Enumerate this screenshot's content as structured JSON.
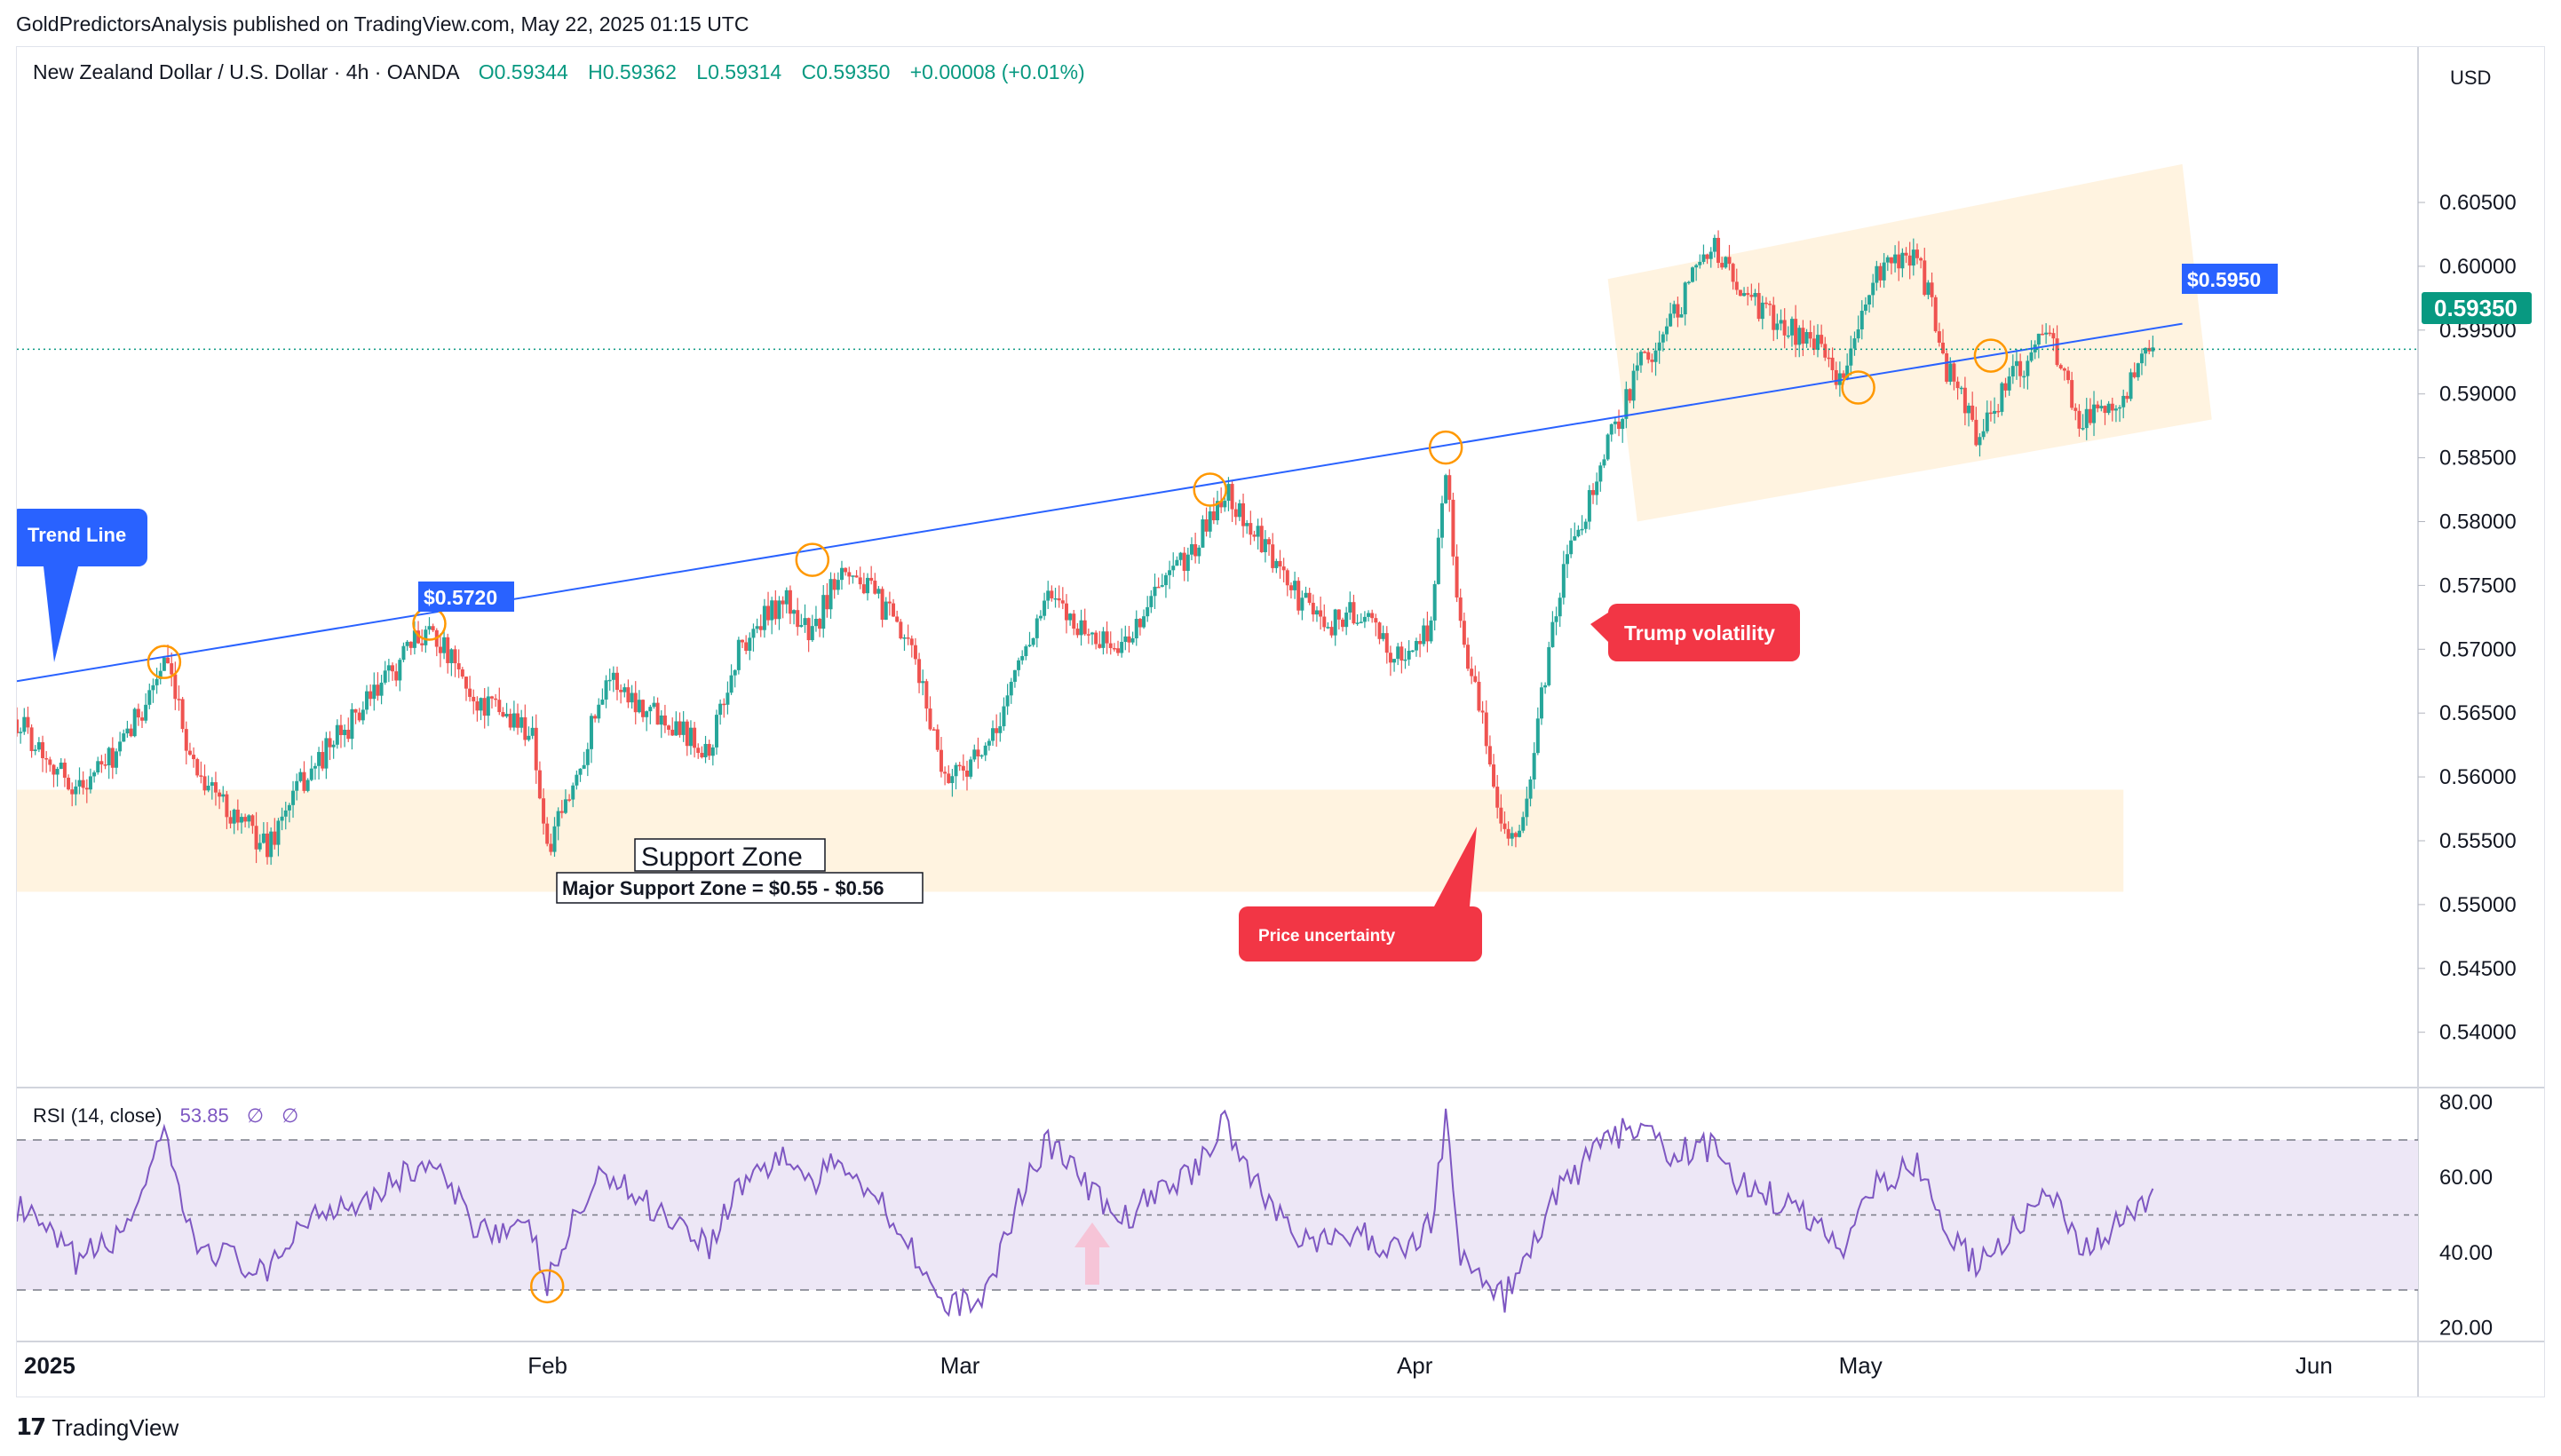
{
  "publisher_line": "GoldPredictorsAnalysis published on TradingView.com, May 22, 2025 01:15 UTC",
  "brand": {
    "mark": "17",
    "name": "TradingView"
  },
  "header": {
    "symbol": "New Zealand Dollar / U.S. Dollar · 4h · OANDA",
    "open": "O0.59344",
    "high": "H0.59362",
    "low": "L0.59314",
    "close": "C0.59350",
    "change": "+0.00008 (+0.01%)"
  },
  "currency_label": "USD",
  "current_price_tag": "0.59350",
  "colors": {
    "up": "#26a69a",
    "down": "#ef5350",
    "trend": "#2962ff",
    "zone": "#fff3e0",
    "rsi": "#7e57c2",
    "rsi_band": "#ede7f6",
    "callout_red": "#f23645",
    "price_tag": "#089981",
    "circle": "#ff9800"
  },
  "annotations": {
    "trend_line_label": "Trend Line",
    "price_label_1": "$0.5720",
    "price_label_2": "$0.5950",
    "support_zone_title": "Support Zone",
    "support_zone_desc": "Major Support Zone = $0.55 - $0.56",
    "trump_volatility": "Trump volatility",
    "price_uncertainty": "Price uncertainty"
  },
  "rsi_header": {
    "label": "RSI (14, close)",
    "value": "53.85",
    "extra1": "∅",
    "extra2": "∅"
  },
  "chart_data": [
    {
      "type": "line",
      "title": "New Zealand Dollar / U.S. Dollar · 4h · OANDA",
      "x_ticks": [
        "2025",
        "Feb",
        "Mar",
        "Apr",
        "May",
        "Jun"
      ],
      "y_ticks": [
        "0.60500",
        "0.60000",
        "0.59500",
        "0.59000",
        "0.58500",
        "0.58000",
        "0.57500",
        "0.57000",
        "0.56500",
        "0.56000",
        "0.55500",
        "0.55000",
        "0.54500",
        "0.54000"
      ],
      "ylim": [
        0.5365,
        0.613
      ],
      "xlim": [
        "2024-12-27",
        "2025-06-08"
      ],
      "series": [
        {
          "x": [
            "2024-12-27",
            "2024-12-31",
            "2025-01-03",
            "2025-01-06",
            "2025-01-08",
            "2025-01-10",
            "2025-01-13",
            "2025-01-15",
            "2025-01-17",
            "2025-01-20",
            "2025-01-22",
            "2025-01-24",
            "2025-01-27",
            "2025-01-29",
            "2025-01-31",
            "2025-02-01",
            "2025-02-03",
            "2025-02-05",
            "2025-02-07",
            "2025-02-10",
            "2025-02-12",
            "2025-02-14",
            "2025-02-17",
            "2025-02-19",
            "2025-02-21",
            "2025-02-24",
            "2025-02-26",
            "2025-02-28",
            "2025-03-03",
            "2025-03-05",
            "2025-03-07",
            "2025-03-10",
            "2025-03-12",
            "2025-03-14",
            "2025-03-17",
            "2025-03-19",
            "2025-03-21",
            "2025-03-24",
            "2025-03-26",
            "2025-03-28",
            "2025-03-31",
            "2025-04-02",
            "2025-04-03",
            "2025-04-04",
            "2025-04-07",
            "2025-04-08",
            "2025-04-09",
            "2025-04-10",
            "2025-04-11",
            "2025-04-14",
            "2025-04-16",
            "2025-04-18",
            "2025-04-21",
            "2025-04-23",
            "2025-04-25",
            "2025-04-28",
            "2025-04-30",
            "2025-05-02",
            "2025-05-05",
            "2025-05-07",
            "2025-05-09",
            "2025-05-12",
            "2025-05-14",
            "2025-05-16",
            "2025-05-19",
            "2025-05-21"
          ],
          "values": [
            0.5645,
            0.559,
            0.562,
            0.569,
            0.561,
            0.558,
            0.5545,
            0.559,
            0.562,
            0.566,
            0.569,
            0.572,
            0.566,
            0.565,
            0.5635,
            0.554,
            0.56,
            0.568,
            0.566,
            0.564,
            0.562,
            0.57,
            0.574,
            0.571,
            0.577,
            0.573,
            0.569,
            0.56,
            0.562,
            0.569,
            0.574,
            0.571,
            0.57,
            0.574,
            0.578,
            0.5825,
            0.579,
            0.574,
            0.572,
            0.573,
            0.569,
            0.572,
            0.584,
            0.572,
            0.556,
            0.555,
            0.562,
            0.57,
            0.576,
            0.586,
            0.592,
            0.595,
            0.602,
            0.598,
            0.596,
            0.594,
            0.591,
            0.599,
            0.601,
            0.592,
            0.587,
            0.592,
            0.595,
            0.588,
            0.59,
            0.5935
          ]
        }
      ]
    },
    {
      "type": "line",
      "title": "RSI (14, close)",
      "y_ticks": [
        "80.00",
        "60.00",
        "40.00",
        "20.00"
      ],
      "ylim": [
        17,
        83
      ],
      "bands": [
        30,
        50,
        70
      ],
      "series": [
        {
          "x": [
            "2024-12-27",
            "2024-12-31",
            "2025-01-03",
            "2025-01-06",
            "2025-01-08",
            "2025-01-10",
            "2025-01-13",
            "2025-01-15",
            "2025-01-17",
            "2025-01-20",
            "2025-01-22",
            "2025-01-24",
            "2025-01-27",
            "2025-01-29",
            "2025-01-31",
            "2025-02-01",
            "2025-02-03",
            "2025-02-05",
            "2025-02-07",
            "2025-02-10",
            "2025-02-12",
            "2025-02-14",
            "2025-02-17",
            "2025-02-19",
            "2025-02-21",
            "2025-02-24",
            "2025-02-26",
            "2025-02-28",
            "2025-03-03",
            "2025-03-05",
            "2025-03-07",
            "2025-03-10",
            "2025-03-12",
            "2025-03-14",
            "2025-03-17",
            "2025-03-19",
            "2025-03-21",
            "2025-03-24",
            "2025-03-26",
            "2025-03-28",
            "2025-03-31",
            "2025-04-02",
            "2025-04-03",
            "2025-04-04",
            "2025-04-07",
            "2025-04-08",
            "2025-04-09",
            "2025-04-10",
            "2025-04-11",
            "2025-04-14",
            "2025-04-16",
            "2025-04-18",
            "2025-04-21",
            "2025-04-23",
            "2025-04-25",
            "2025-04-28",
            "2025-04-30",
            "2025-05-02",
            "2025-05-05",
            "2025-05-07",
            "2025-05-09",
            "2025-05-12",
            "2025-05-14",
            "2025-05-16",
            "2025-05-19",
            "2025-05-21"
          ],
          "values": [
            52,
            38,
            44,
            70,
            42,
            40,
            33,
            47,
            52,
            55,
            60,
            64,
            48,
            46,
            45,
            31,
            50,
            62,
            55,
            48,
            42,
            58,
            66,
            58,
            65,
            52,
            40,
            24,
            30,
            55,
            70,
            56,
            48,
            55,
            62,
            76,
            58,
            45,
            42,
            45,
            40,
            48,
            76,
            38,
            28,
            35,
            42,
            52,
            58,
            70,
            74,
            66,
            68,
            58,
            55,
            48,
            42,
            58,
            64,
            46,
            36,
            48,
            56,
            40,
            48,
            54
          ]
        }
      ]
    }
  ]
}
